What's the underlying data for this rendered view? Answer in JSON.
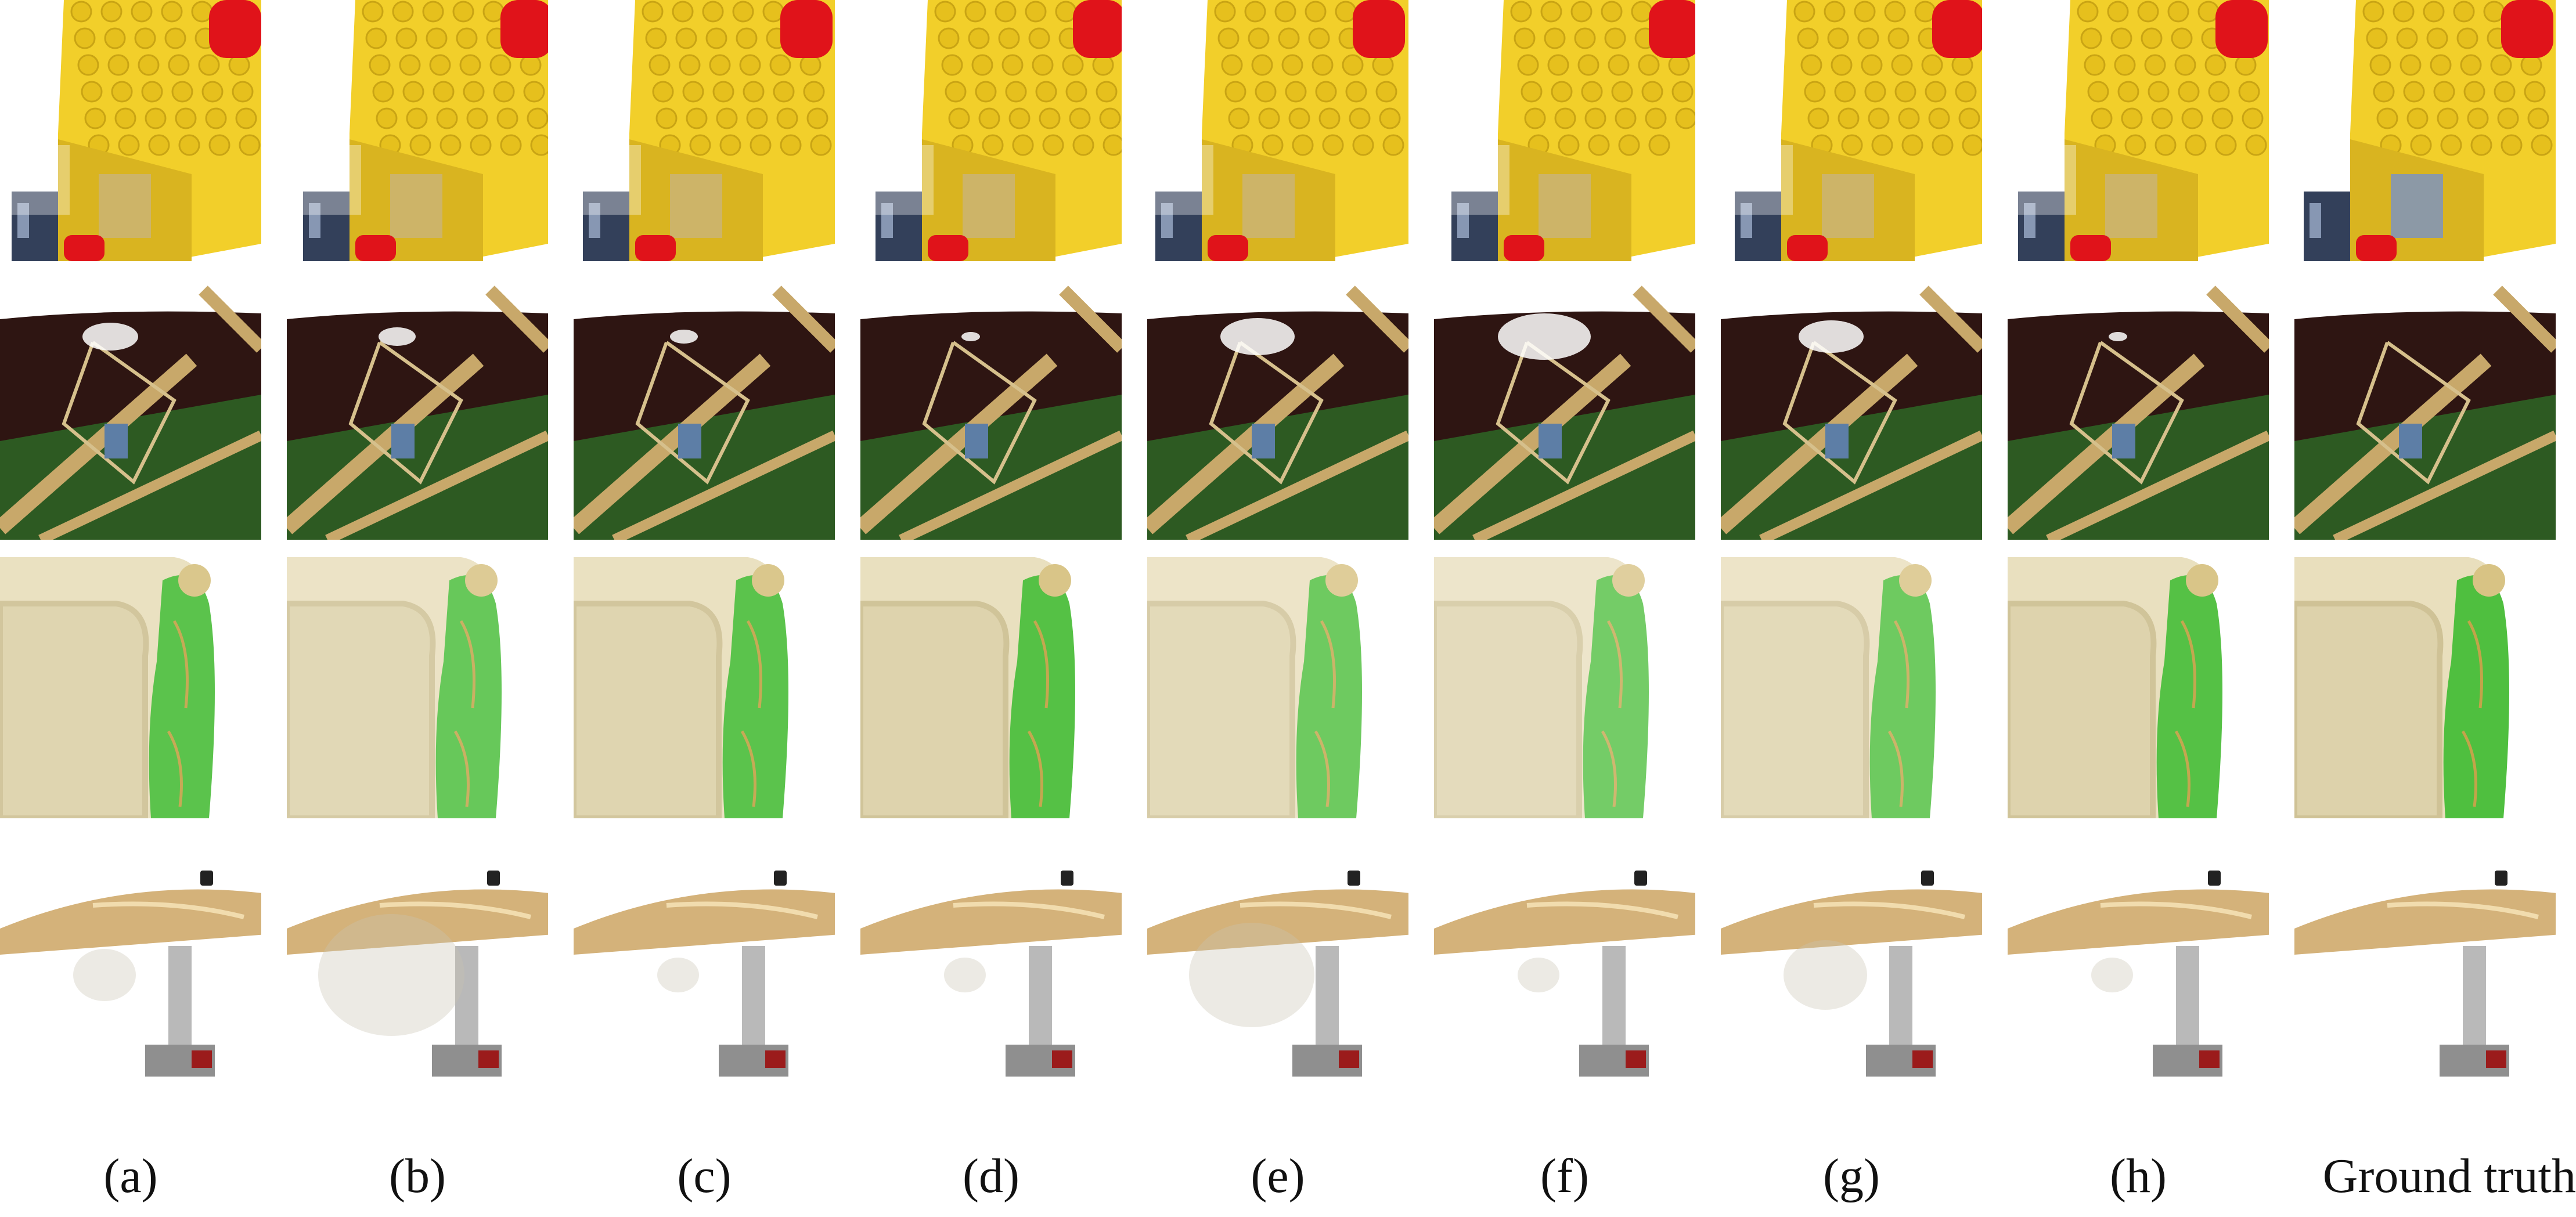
{
  "figure": {
    "columns": [
      {
        "label": "(a)"
      },
      {
        "label": "(b)"
      },
      {
        "label": "(c)"
      },
      {
        "label": "(d)"
      },
      {
        "label": "(e)"
      },
      {
        "label": "(f)"
      },
      {
        "label": "(g)"
      },
      {
        "label": "(h)"
      },
      {
        "label": "Ground truth"
      }
    ],
    "rows": [
      {
        "scene": "lego"
      },
      {
        "scene": "ship"
      },
      {
        "scene": "chair"
      },
      {
        "scene": "drums"
      }
    ],
    "colors": {
      "background": "#ffffff",
      "lego_yellow": "#f2cf2a",
      "lego_red": "#e0131a",
      "ship_hull": "#2e1512",
      "ship_grass": "#2d5a22",
      "ship_brass": "#c8a86a",
      "chair_cream": "#e9dfbd",
      "chair_green": "#4fbf3f",
      "cymbal_gold": "#d4b27a",
      "drum_metal": "#b9b9b9"
    }
  }
}
